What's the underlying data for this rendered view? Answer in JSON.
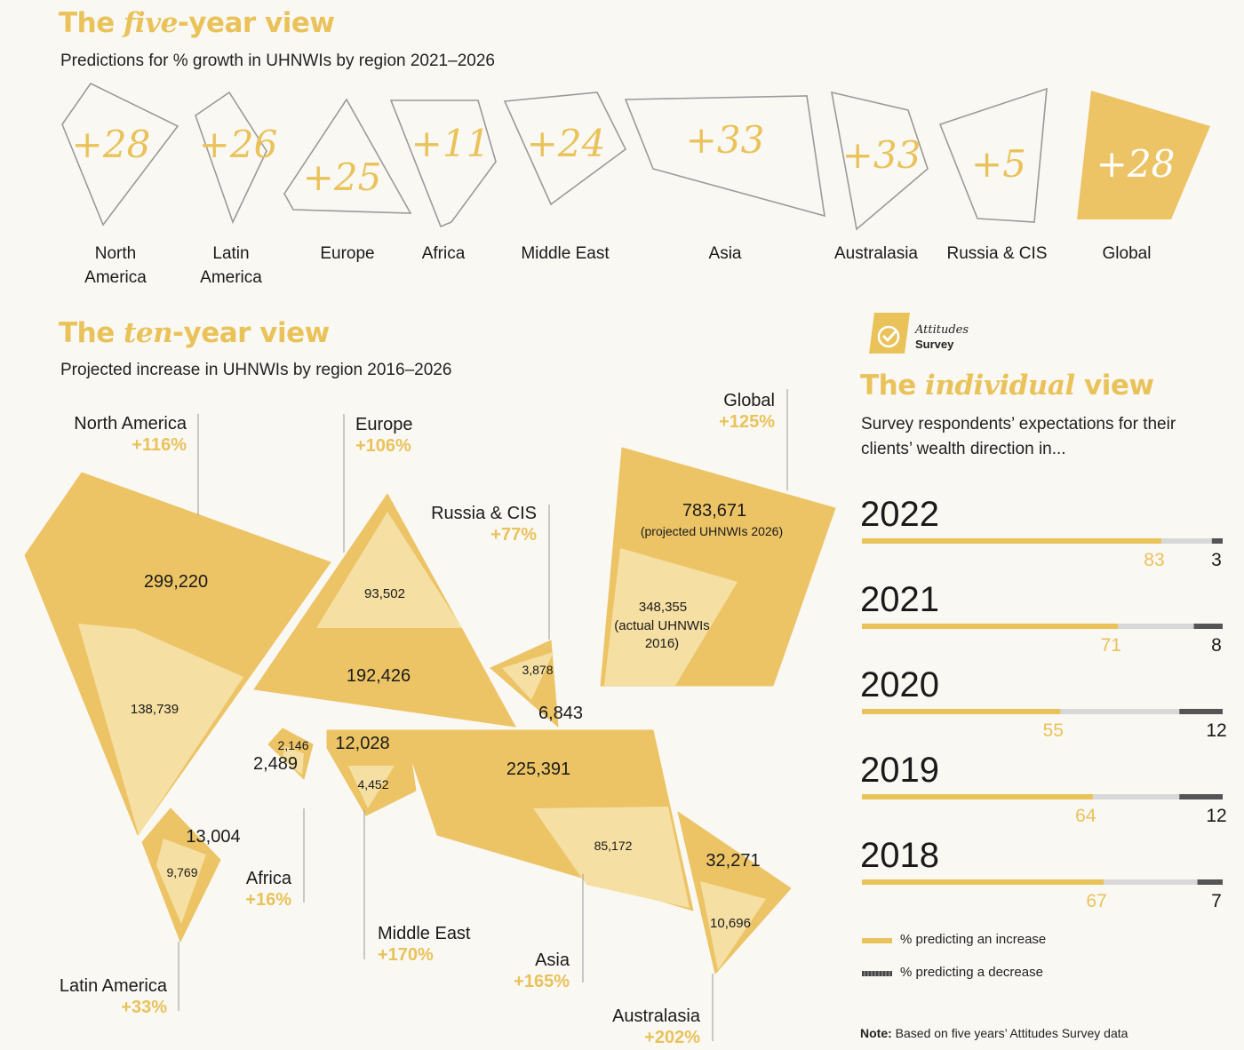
{
  "colors": {
    "gold": "#e9c25a",
    "gold_fill": "#ecc466",
    "light_fill": "#f5dfa2",
    "outline": "#9a9a9a",
    "decrease": "#555555",
    "neutral": "#d8d8d8"
  },
  "five_year": {
    "title_pre": "The ",
    "title_ital": "five",
    "title_post": "-year view",
    "subtitle": "Predictions for % growth in UHNWIs by region 2021–2026"
  },
  "ten_year": {
    "title_pre": "The ",
    "title_ital": "ten",
    "title_post": "-year view",
    "subtitle": "Projected increase in UHNWIs by region 2016–2026"
  },
  "individual": {
    "title_pre": "The ",
    "title_ital": "individual",
    "title_post": " view",
    "subtitle_line1": "Survey respondents’ expectations for their",
    "subtitle_line2": "clients’ wealth direction in...",
    "badge_line1": "Attitudes",
    "badge_line2": "Survey",
    "legend_increase": "% predicting an increase",
    "legend_decrease": "% predicting a decrease",
    "note_bold": "Note:",
    "note_text": " Based on five years’ Attitudes Survey data"
  },
  "chart_data": [
    {
      "type": "bar",
      "title": "The five-year view",
      "subtitle": "Predictions for % growth in UHNWIs by region 2021–2026",
      "categories": [
        "North America",
        "Latin America",
        "Europe",
        "Africa",
        "Middle East",
        "Asia",
        "Australasia",
        "Russia & CIS",
        "Global"
      ],
      "values": [
        28,
        26,
        25,
        11,
        24,
        33,
        33,
        5,
        28
      ],
      "value_labels": [
        "+28",
        "+26",
        "+25",
        "+11",
        "+24",
        "+33",
        "+33",
        "+5",
        "+28"
      ],
      "label_lines": [
        [
          "North",
          "America"
        ],
        [
          "Latin",
          "America"
        ],
        [
          "Europe"
        ],
        [
          "Africa"
        ],
        [
          "Middle East"
        ],
        [
          "Asia"
        ],
        [
          "Australasia"
        ],
        [
          "Russia & CIS"
        ],
        [
          "Global"
        ]
      ]
    },
    {
      "type": "bar",
      "title": "The ten-year view",
      "subtitle": "Projected increase in UHNWIs by region 2016–2026",
      "categories": [
        "North America",
        "Europe",
        "Russia & CIS",
        "Global",
        "Africa",
        "Middle East",
        "Asia",
        "Australasia",
        "Latin America"
      ],
      "series": [
        {
          "values": [
            138739,
            93502,
            3878,
            348355,
            2146,
            4452,
            85172,
            10696,
            9769
          ]
        },
        {
          "values": [
            299220,
            192426,
            6843,
            783671,
            2489,
            12028,
            225391,
            32271,
            13004
          ]
        }
      ],
      "growth_labels": [
        "+116%",
        "+106%",
        "+77%",
        "+125%",
        "+16%",
        "+170%",
        "+165%",
        "+202%",
        "+33%"
      ],
      "value_labels_2016": [
        "138,739",
        "93,502",
        "3,878",
        "348,355",
        "2,146",
        "4,452",
        "85,172",
        "10,696",
        "9,769"
      ],
      "value_labels_2026": [
        "299,220",
        "192,426",
        "6,843",
        "783,671",
        "2,489",
        "12,028",
        "225,391",
        "32,271",
        "13,004"
      ],
      "global_2026_note": "(projected UHNWIs 2026)",
      "global_2016_note_lines": [
        "(actual UHNWIs",
        "2016)"
      ]
    },
    {
      "type": "bar",
      "title": "The individual view",
      "categories": [
        "2022",
        "2021",
        "2020",
        "2019",
        "2018"
      ],
      "series": [
        {
          "name": "% predicting an increase",
          "values": [
            83,
            71,
            55,
            64,
            67
          ]
        },
        {
          "name": "% predicting a decrease",
          "values": [
            3,
            8,
            12,
            12,
            7
          ]
        }
      ],
      "xlim": [
        0,
        100
      ]
    }
  ]
}
